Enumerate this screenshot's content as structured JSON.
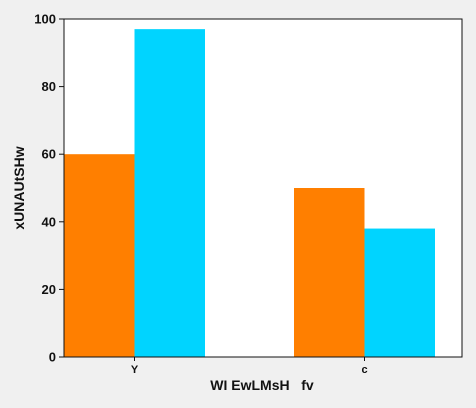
{
  "chart_data": {
    "type": "bar",
    "categories": [
      "Y",
      "c"
    ],
    "series": [
      {
        "values": [
          60,
          50
        ],
        "color": "#ff7f00"
      },
      {
        "values": [
          97,
          38
        ],
        "color": "#00d4ff"
      }
    ],
    "xlabel": "WI EwLMsH   fv",
    "ylabel": "xUNAUtSHw",
    "ylim": [
      0,
      100
    ],
    "yticks": [
      0,
      20,
      40,
      60,
      80,
      100
    ],
    "grid": false,
    "legend": "none",
    "plot_background": "#ffffff",
    "page_background": "#f0f0f0"
  }
}
